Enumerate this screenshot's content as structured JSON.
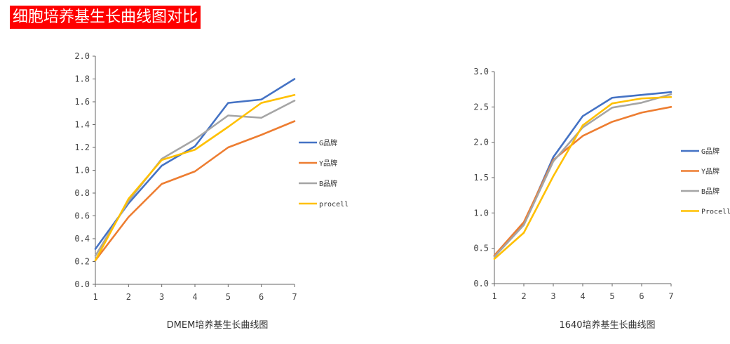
{
  "page": {
    "title": "细胞培养基生长曲线图对比"
  },
  "chart_data": [
    {
      "type": "line",
      "title": "DMEM培养基生长曲线图",
      "xlabel": "",
      "ylabel": "",
      "x": [
        1,
        2,
        3,
        4,
        5,
        6,
        7
      ],
      "xlim": [
        1,
        7
      ],
      "ylim": [
        0,
        2.0
      ],
      "y_ticks": [
        "0.0",
        "0.2",
        "0.4",
        "0.6",
        "0.8",
        "1.0",
        "1.2",
        "1.4",
        "1.6",
        "1.8",
        "2.0"
      ],
      "x_ticks": [
        "1",
        "2",
        "3",
        "4",
        "5",
        "6",
        "7"
      ],
      "grid": false,
      "legend_position": "right",
      "series": [
        {
          "name": "G品牌",
          "color": "#4472c4",
          "values": [
            0.31,
            0.71,
            1.04,
            1.21,
            1.59,
            1.62,
            1.8
          ]
        },
        {
          "name": "Y品牌",
          "color": "#ed7d31",
          "values": [
            0.21,
            0.59,
            0.88,
            0.99,
            1.2,
            1.31,
            1.43
          ]
        },
        {
          "name": "B品牌",
          "color": "#a5a5a5",
          "values": [
            0.25,
            0.73,
            1.1,
            1.27,
            1.48,
            1.46,
            1.61
          ]
        },
        {
          "name": "procell",
          "color": "#ffc000",
          "values": [
            0.21,
            0.75,
            1.09,
            1.18,
            1.38,
            1.59,
            1.66
          ]
        }
      ]
    },
    {
      "type": "line",
      "title": "1640培养基生长曲线图",
      "xlabel": "",
      "ylabel": "",
      "x": [
        1,
        2,
        3,
        4,
        5,
        6,
        7
      ],
      "xlim": [
        1,
        7
      ],
      "ylim": [
        0,
        3.0
      ],
      "y_ticks": [
        "0.0",
        "0.5",
        "1.0",
        "1.5",
        "2.0",
        "2.5",
        "3.0"
      ],
      "x_ticks": [
        "1",
        "2",
        "3",
        "4",
        "5",
        "6",
        "7"
      ],
      "grid": false,
      "legend_position": "right",
      "series": [
        {
          "name": "G品牌",
          "color": "#4472c4",
          "values": [
            0.4,
            0.84,
            1.79,
            2.37,
            2.63,
            2.67,
            2.71
          ]
        },
        {
          "name": "Y品牌",
          "color": "#ed7d31",
          "values": [
            0.4,
            0.87,
            1.75,
            2.09,
            2.29,
            2.42,
            2.5
          ]
        },
        {
          "name": "B品牌",
          "color": "#a5a5a5",
          "values": [
            0.38,
            0.83,
            1.73,
            2.21,
            2.49,
            2.56,
            2.68
          ]
        },
        {
          "name": "Procell",
          "color": "#ffc000",
          "values": [
            0.35,
            0.72,
            1.52,
            2.24,
            2.55,
            2.62,
            2.64
          ]
        }
      ]
    }
  ]
}
